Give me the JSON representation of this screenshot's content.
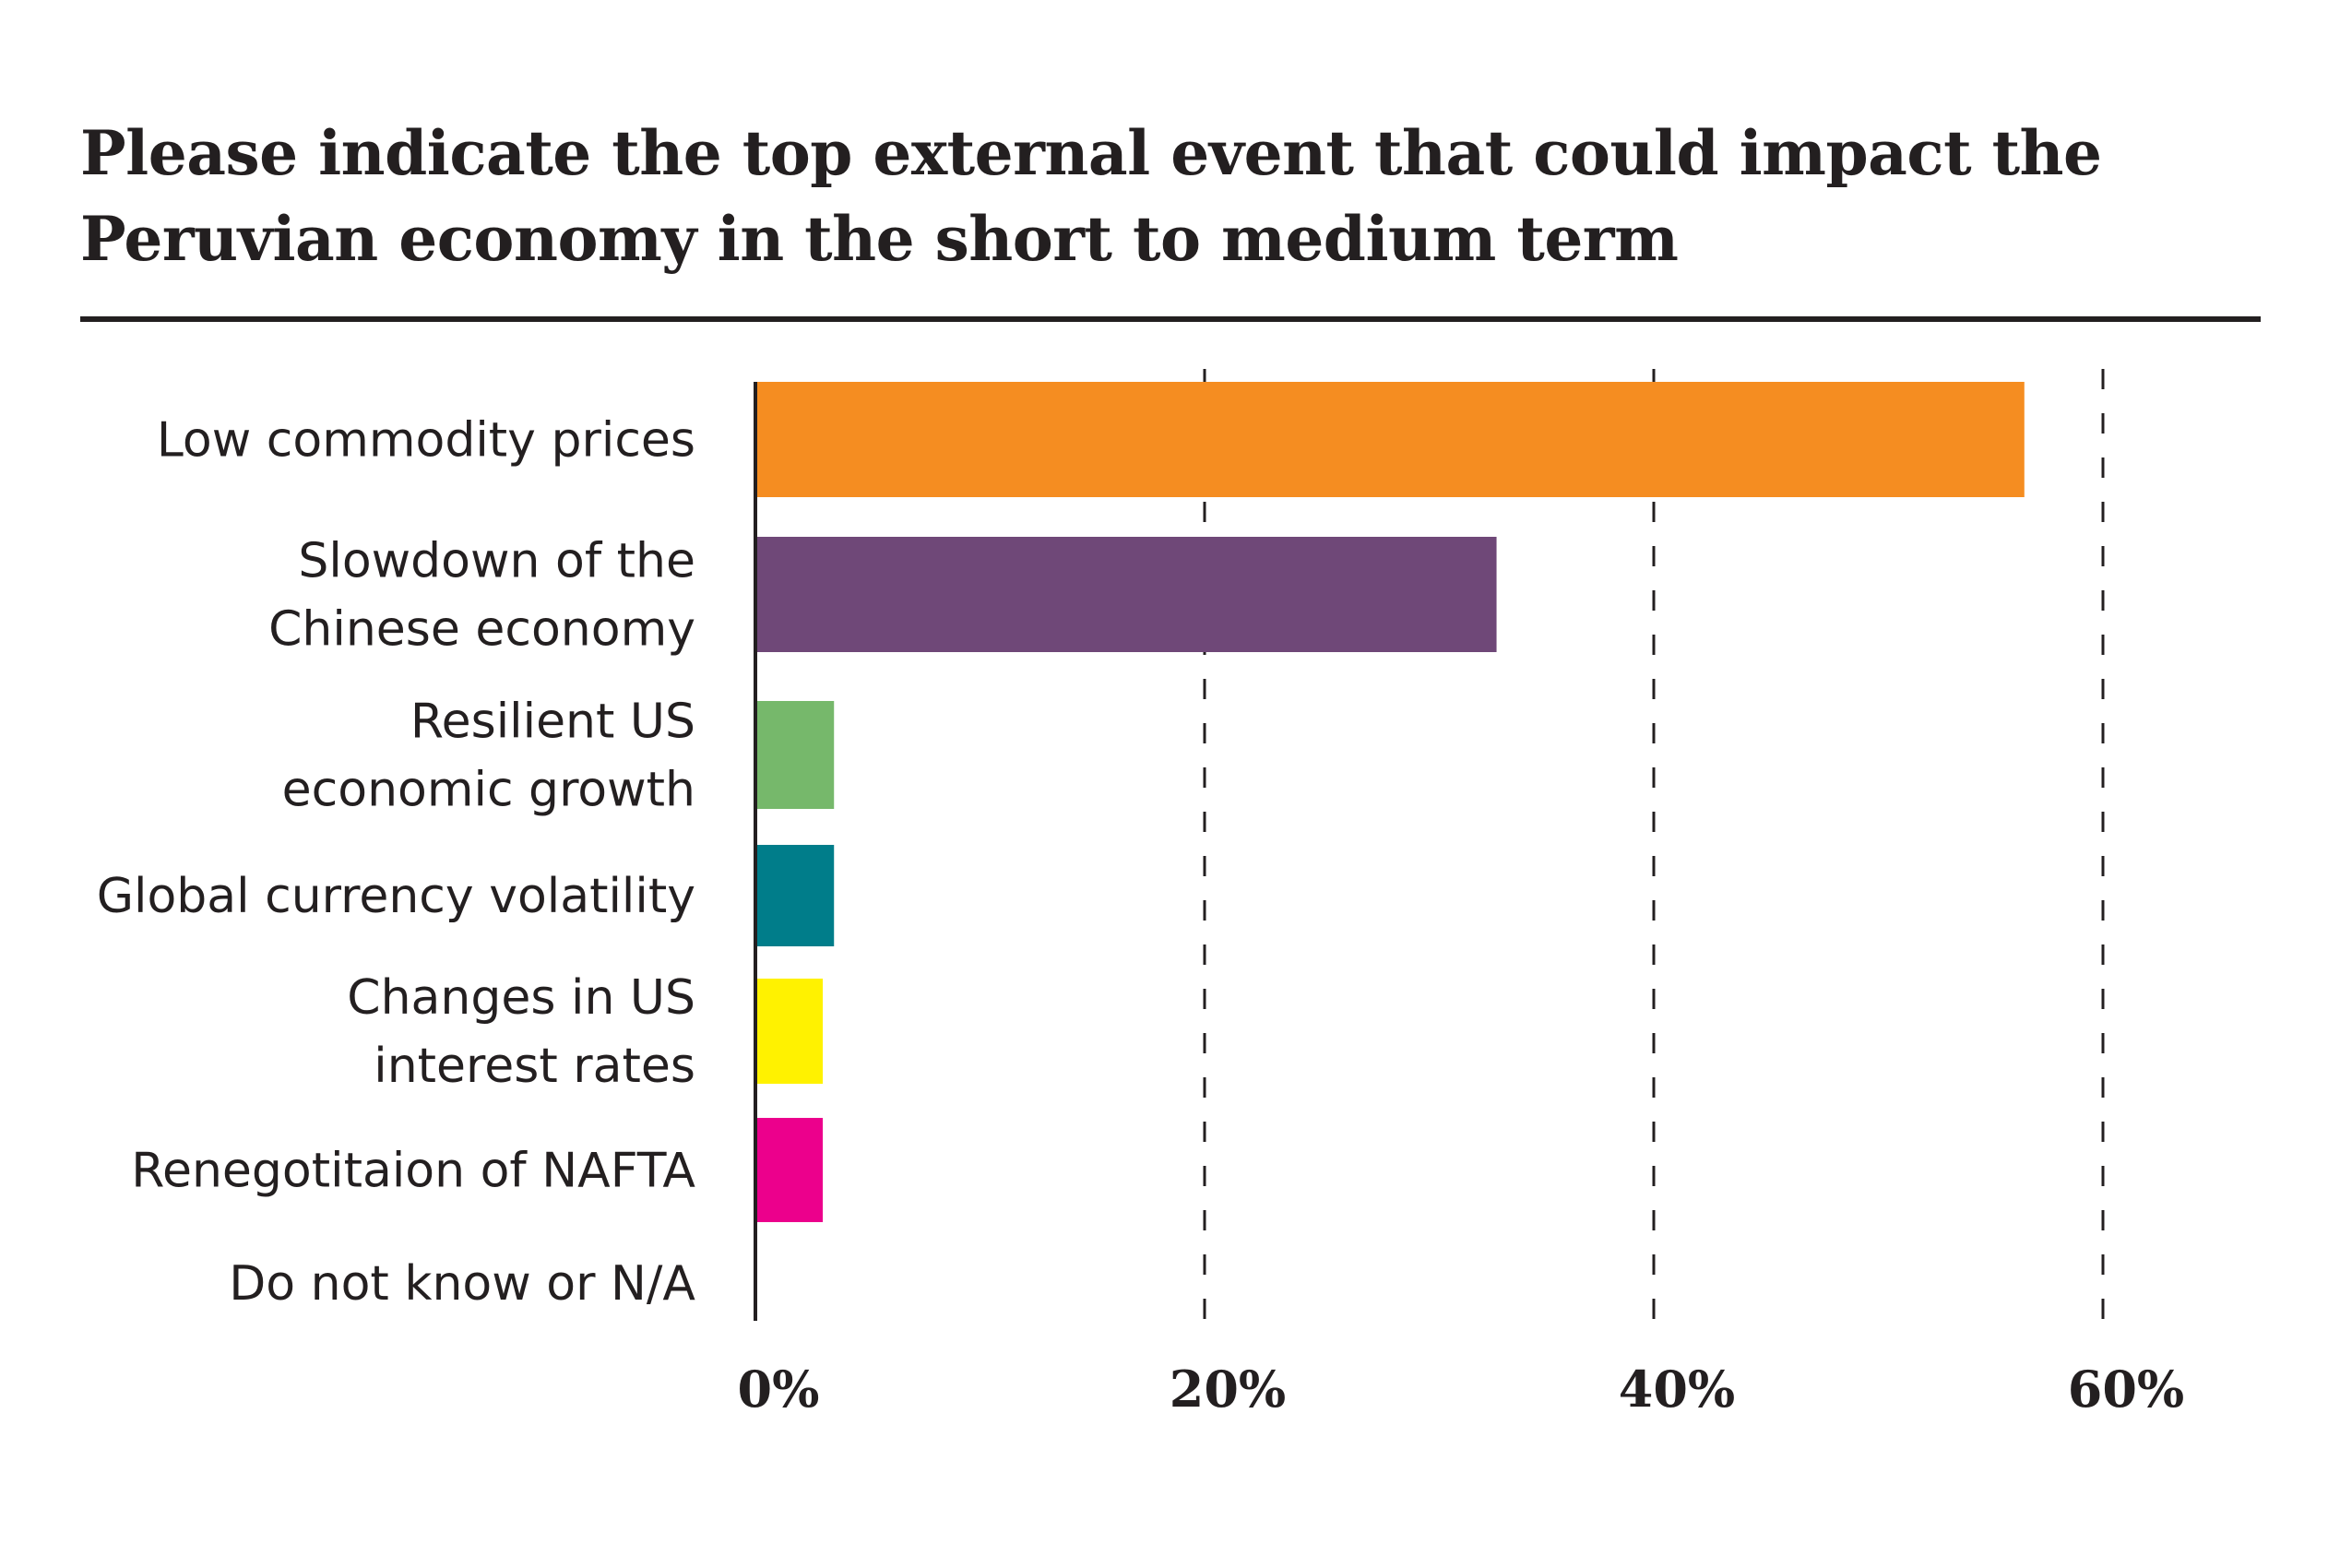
{
  "chart_data": {
    "type": "bar",
    "orientation": "horizontal",
    "title": "Please indicate the top external event that could impact the Peruvian economy in the short to medium term",
    "title_lines": [
      "Please indicate the top external event that could impact the",
      "Peruvian economy in the short to medium term"
    ],
    "categories": [
      [
        "Low commodity prices"
      ],
      [
        "Slowdown of the",
        "Chinese economy"
      ],
      [
        "Resilient US",
        "economic growth"
      ],
      [
        "Global currency volatility"
      ],
      [
        "Changes in US",
        "interest rates"
      ],
      [
        "Renegotitaion of NAFTA"
      ],
      [
        "Do not know or N/A"
      ]
    ],
    "values": [
      56.5,
      33,
      3.5,
      3.5,
      3,
      3,
      0
    ],
    "colors": [
      "#f58d21",
      "#6f4878",
      "#76b86b",
      "#007d8a",
      "#fff200",
      "#ec008c",
      "#cccccc"
    ],
    "xlabel": "",
    "ylabel": "",
    "xlim": [
      0,
      60
    ],
    "xticks": [
      0,
      20,
      40,
      60
    ],
    "xtick_labels": [
      "0%",
      "20%",
      "40%",
      "60%"
    ],
    "grid": "vertical dashed",
    "legend": "none"
  }
}
